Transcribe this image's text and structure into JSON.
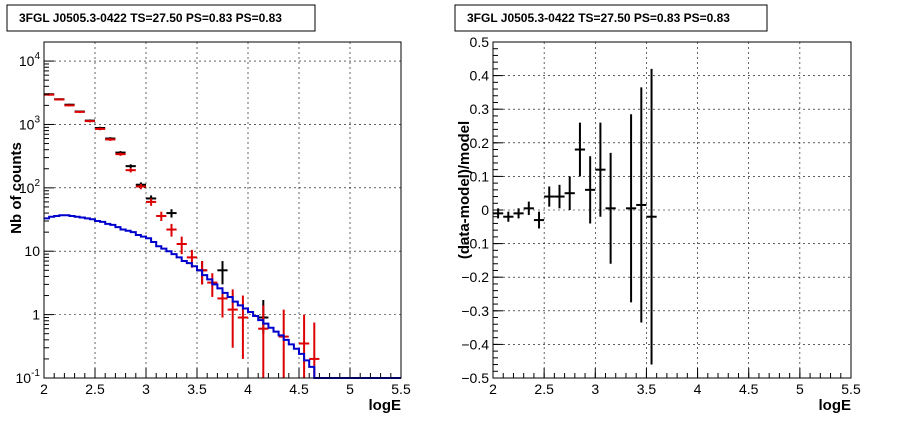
{
  "chart_data": [
    {
      "type": "line",
      "title": "3FGL J0505.3-0422 TS=27.50 PS=0.83 PS=0.83",
      "xlabel": "logE",
      "ylabel": "Nb of counts",
      "xlim": [
        2.0,
        5.5
      ],
      "ylim": [
        0.1,
        20000
      ],
      "yscale": "log",
      "grid": true,
      "x_ticks": [
        "2",
        "2.5",
        "3",
        "3.5",
        "4",
        "4.5",
        "5",
        "5.5"
      ],
      "y_ticks": [
        {
          "v": 0.1,
          "base": "10",
          "exp": "-1"
        },
        {
          "v": 1,
          "base": "1",
          "exp": ""
        },
        {
          "v": 10,
          "base": "10",
          "exp": ""
        },
        {
          "v": 100,
          "base": "10",
          "exp": "2"
        },
        {
          "v": 1000,
          "base": "10",
          "exp": "3"
        },
        {
          "v": 10000,
          "base": "10",
          "exp": "4"
        }
      ],
      "series": [
        {
          "kind": "points",
          "color": "#000000",
          "points": [
            {
              "x": 2.05,
              "y": 3000,
              "lo": 2900,
              "hi": 3100
            },
            {
              "x": 2.15,
              "y": 2500,
              "lo": 2420,
              "hi": 2580
            },
            {
              "x": 2.25,
              "y": 2050,
              "lo": 1980,
              "hi": 2120
            },
            {
              "x": 2.35,
              "y": 1600,
              "lo": 1540,
              "hi": 1660
            },
            {
              "x": 2.45,
              "y": 1150,
              "lo": 1100,
              "hi": 1200
            },
            {
              "x": 2.55,
              "y": 880,
              "lo": 840,
              "hi": 920
            },
            {
              "x": 2.65,
              "y": 600,
              "lo": 570,
              "hi": 630
            },
            {
              "x": 2.75,
              "y": 360,
              "lo": 340,
              "hi": 380
            },
            {
              "x": 2.85,
              "y": 220,
              "lo": 205,
              "hi": 235
            },
            {
              "x": 2.95,
              "y": 112,
              "lo": 102,
              "hi": 122
            },
            {
              "x": 3.05,
              "y": 68,
              "lo": 60,
              "hi": 76
            },
            {
              "x": 3.25,
              "y": 40,
              "lo": 34,
              "hi": 46
            },
            {
              "x": 3.55,
              "y": 5,
              "lo": 3,
              "hi": 7
            },
            {
              "x": 3.75,
              "y": 5,
              "lo": 3,
              "hi": 7
            },
            {
              "x": 4.15,
              "y": 0.9,
              "lo": 0.5,
              "hi": 1.7
            }
          ]
        },
        {
          "kind": "points",
          "color": "#dd0000",
          "points": [
            {
              "x": 2.05,
              "y": 2950,
              "lo": 2850,
              "hi": 3050
            },
            {
              "x": 2.15,
              "y": 2480,
              "lo": 2400,
              "hi": 2560
            },
            {
              "x": 2.25,
              "y": 2000,
              "lo": 1930,
              "hi": 2070
            },
            {
              "x": 2.35,
              "y": 1580,
              "lo": 1520,
              "hi": 1640
            },
            {
              "x": 2.45,
              "y": 1130,
              "lo": 1080,
              "hi": 1180
            },
            {
              "x": 2.55,
              "y": 850,
              "lo": 810,
              "hi": 890
            },
            {
              "x": 2.65,
              "y": 580,
              "lo": 550,
              "hi": 610
            },
            {
              "x": 2.75,
              "y": 340,
              "lo": 320,
              "hi": 360
            },
            {
              "x": 2.85,
              "y": 190,
              "lo": 175,
              "hi": 205
            },
            {
              "x": 2.95,
              "y": 105,
              "lo": 95,
              "hi": 115
            },
            {
              "x": 3.05,
              "y": 60,
              "lo": 52,
              "hi": 68
            },
            {
              "x": 3.15,
              "y": 36,
              "lo": 30,
              "hi": 42
            },
            {
              "x": 3.25,
              "y": 22,
              "lo": 17,
              "hi": 27
            },
            {
              "x": 3.35,
              "y": 13,
              "lo": 9,
              "hi": 17
            },
            {
              "x": 3.45,
              "y": 8,
              "lo": 5.5,
              "hi": 10.5
            },
            {
              "x": 3.55,
              "y": 5,
              "lo": 3,
              "hi": 7
            },
            {
              "x": 3.65,
              "y": 3.2,
              "lo": 1.9,
              "hi": 4.5
            },
            {
              "x": 3.75,
              "y": 1.8,
              "lo": 0.9,
              "hi": 2.7
            },
            {
              "x": 3.85,
              "y": 1.2,
              "lo": 0.3,
              "hi": 2.5
            },
            {
              "x": 3.95,
              "y": 0.9,
              "lo": 0.2,
              "hi": 2.0
            },
            {
              "x": 4.15,
              "y": 0.6,
              "lo": 0.1,
              "hi": 1.4
            },
            {
              "x": 4.35,
              "y": 0.45,
              "lo": 0.1,
              "hi": 1.2
            },
            {
              "x": 4.55,
              "y": 0.35,
              "lo": 0.1,
              "hi": 1.0
            },
            {
              "x": 4.65,
              "y": 0.2,
              "lo": 0.1,
              "hi": 0.75
            }
          ]
        },
        {
          "kind": "step",
          "color": "#0000cc",
          "edges": [
            2.0,
            2.05,
            2.1,
            2.15,
            2.2,
            2.25,
            2.3,
            2.35,
            2.4,
            2.45,
            2.5,
            2.55,
            2.6,
            2.65,
            2.7,
            2.75,
            2.8,
            2.85,
            2.9,
            2.95,
            3.0,
            3.05,
            3.1,
            3.15,
            3.2,
            3.25,
            3.3,
            3.35,
            3.4,
            3.45,
            3.5,
            3.55,
            3.6,
            3.65,
            3.7,
            3.75,
            3.8,
            3.85,
            3.9,
            3.95,
            4.0,
            4.05,
            4.1,
            4.15,
            4.2,
            4.25,
            4.3,
            4.35,
            4.4,
            4.45,
            4.5,
            4.55,
            4.6,
            4.65,
            5.5
          ],
          "values": [
            33,
            35,
            36,
            37,
            37,
            36,
            35,
            34,
            33,
            32,
            30,
            29,
            27,
            26,
            24,
            22,
            21,
            20,
            18,
            17,
            16,
            14,
            12,
            11,
            10,
            9,
            8,
            7,
            6.5,
            5.8,
            5,
            4.2,
            3.6,
            3,
            2.6,
            2.2,
            1.9,
            1.6,
            1.4,
            1.25,
            1.1,
            0.95,
            0.82,
            0.72,
            0.62,
            0.54,
            0.47,
            0.4,
            0.34,
            0.29,
            0.24,
            0.19,
            0.15,
            0.1
          ]
        }
      ]
    },
    {
      "type": "scatter",
      "title": "3FGL J0505.3-0422 TS=27.50 PS=0.83 PS=0.83",
      "xlabel": "logE",
      "ylabel": "(data-model)/model",
      "xlim": [
        2.0,
        5.5
      ],
      "ylim": [
        -0.5,
        0.5
      ],
      "grid": true,
      "x_ticks": [
        "2",
        "2.5",
        "3",
        "3.5",
        "4",
        "4.5",
        "5",
        "5.5"
      ],
      "y_ticks": [
        "−0.5",
        "−0.4",
        "−0.3",
        "−0.2",
        "−0.1",
        "0",
        "0.1",
        "0.2",
        "0.3",
        "0.4",
        "0.5"
      ],
      "series": [
        {
          "color": "#000000",
          "points": [
            {
              "x": 2.05,
              "y": -0.01,
              "err": 0.015
            },
            {
              "x": 2.15,
              "y": -0.02,
              "err": 0.015
            },
            {
              "x": 2.25,
              "y": -0.01,
              "err": 0.015
            },
            {
              "x": 2.35,
              "y": 0.005,
              "err": 0.02
            },
            {
              "x": 2.45,
              "y": -0.03,
              "err": 0.025
            },
            {
              "x": 2.55,
              "y": 0.04,
              "err": 0.03
            },
            {
              "x": 2.65,
              "y": 0.04,
              "err": 0.035
            },
            {
              "x": 2.75,
              "y": 0.05,
              "err": 0.05
            },
            {
              "x": 2.85,
              "y": 0.18,
              "err": 0.08
            },
            {
              "x": 2.95,
              "y": 0.06,
              "err": 0.1
            },
            {
              "x": 3.05,
              "y": 0.12,
              "err": 0.14
            },
            {
              "x": 3.15,
              "y": 0.005,
              "err": 0.165
            },
            {
              "x": 3.35,
              "y": 0.005,
              "err": 0.28
            },
            {
              "x": 3.45,
              "y": 0.015,
              "err": 0.35
            },
            {
              "x": 3.55,
              "y": -0.02,
              "err": 0.44
            }
          ]
        }
      ]
    }
  ]
}
